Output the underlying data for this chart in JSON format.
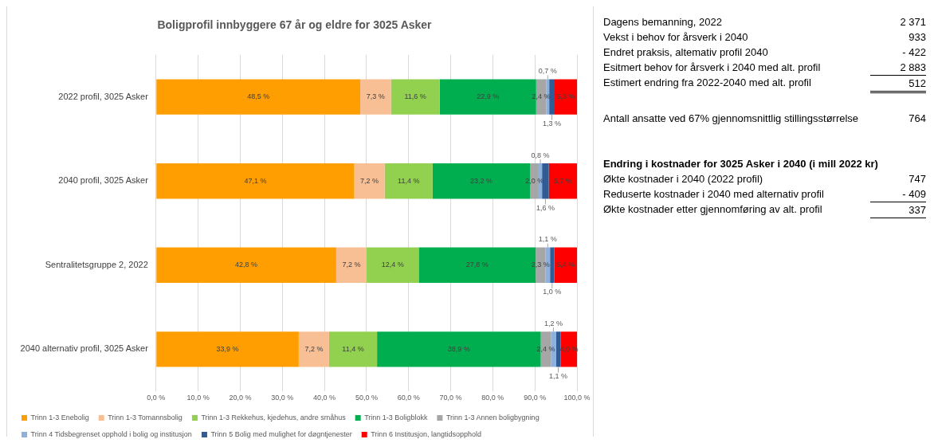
{
  "chart_data": [
    {
      "type": "bar",
      "orientation": "horizontal",
      "stacked": true,
      "title": "Boligprofil innbyggere 67 år og eldre for 3025 Asker",
      "categories": [
        "2022 profil, 3025 Asker",
        "2040 profil, 3025 Asker",
        "Sentralitetsgruppe 2, 2022",
        "2040 alternativ profil, 3025 Asker"
      ],
      "series": [
        {
          "name": "Trinn 1-3 Enebolig",
          "color": "#ff9e00",
          "values": [
            48.5,
            47.1,
            42.8,
            33.9
          ],
          "value_labels": [
            "48,5 %",
            "47,1 %",
            "42,8 %",
            "33,9 %"
          ]
        },
        {
          "name": "Trinn 1-3 Tomannsbolig",
          "color": "#f8bf94",
          "values": [
            7.3,
            7.2,
            7.2,
            7.2
          ],
          "value_labels": [
            "7,3 %",
            "7,2 %",
            "7,2 %",
            "7,2 %"
          ]
        },
        {
          "name": "Trinn 1-3 Rekkehus, kjedehus, andre småhus",
          "color": "#92d050",
          "values": [
            11.6,
            11.4,
            12.4,
            11.4
          ],
          "value_labels": [
            "11,6 %",
            "11,4 %",
            "12,4 %",
            "11,4 %"
          ]
        },
        {
          "name": "Trinn 1-3 Boligblokk",
          "color": "#00ae4f",
          "values": [
            22.9,
            23.2,
            27.8,
            38.9
          ],
          "value_labels": [
            "22,9 %",
            "23,2 %",
            "27,8 %",
            "38,9 %"
          ]
        },
        {
          "name": "Trinn 1-3 Annen boligbygning",
          "color": "#a6a6a6",
          "values": [
            2.4,
            2.0,
            2.3,
            2.4
          ],
          "value_labels": [
            "2,4 %",
            "2,0 %",
            "2,3 %",
            "2,4 %"
          ]
        },
        {
          "name": "Trinn 4 Tidsbegrenset opphold i bolig og institusjon",
          "color": "#8eb0dd",
          "values": [
            0.7,
            0.8,
            1.1,
            1.2
          ],
          "value_labels": [
            "0,7 %",
            "0,8 %",
            "1,1 %",
            "1,2 %"
          ]
        },
        {
          "name": "Trinn 5 Bolig med mulighet for døgntjenester",
          "color": "#2f5c97",
          "values": [
            1.3,
            1.6,
            1.0,
            1.1
          ],
          "value_labels": [
            "1,3 %",
            "1,6 %",
            "1,0 %",
            "1,1 %"
          ]
        },
        {
          "name": "Trinn 6 Institusjon, langtidsopphold",
          "color": "#ff0000",
          "values": [
            5.3,
            6.7,
            5.4,
            4.0
          ],
          "value_labels": [
            "5,3 %",
            "6,7 %",
            "5,4 %",
            "4,0 %"
          ]
        }
      ],
      "xlim": [
        0,
        100
      ],
      "xticks": [
        {
          "value": 0,
          "label": "0,0 %"
        },
        {
          "value": 10,
          "label": "10,0 %"
        },
        {
          "value": 20,
          "label": "20,0 %"
        },
        {
          "value": 30,
          "label": "30,0 %"
        },
        {
          "value": 40,
          "label": "40,0 %"
        },
        {
          "value": 50,
          "label": "50,0 %"
        },
        {
          "value": 60,
          "label": "60,0 %"
        },
        {
          "value": 70,
          "label": "70,0 %"
        },
        {
          "value": 80,
          "label": "80,0 %"
        },
        {
          "value": 90,
          "label": "90,0 %"
        },
        {
          "value": 100,
          "label": "100,0 %"
        }
      ],
      "grid": "x",
      "legend": "bottom"
    },
    {
      "type": "other",
      "annotations": [
        "Dagens bemanning, 2022",
        "2 371",
        "Vekst i behov for årsverk i 2040",
        "933",
        "Endret praksis, altemativ profil 2040",
        "- 422",
        "Esitmert behov for årsverk i 2040 med alt. profil",
        "2 883",
        "Estimert endring fra 2022-2040 med alt. profil",
        "512",
        "Antall ansatte ved 67% gjennomsnittlig stillingsstørrelse",
        "764"
      ]
    },
    {
      "type": "other",
      "title": "Endring i kostnader for 3025 Asker i 2040 (i mill 2022 kr)",
      "annotations": [
        "Økte kostnader i 2040 (2022 profil)",
        "747",
        "Reduserte kostnader i 2040 med alternativ profil",
        "- 409",
        "Økte kostnader etter gjennomføring av alt. profil",
        "337"
      ]
    }
  ]
}
